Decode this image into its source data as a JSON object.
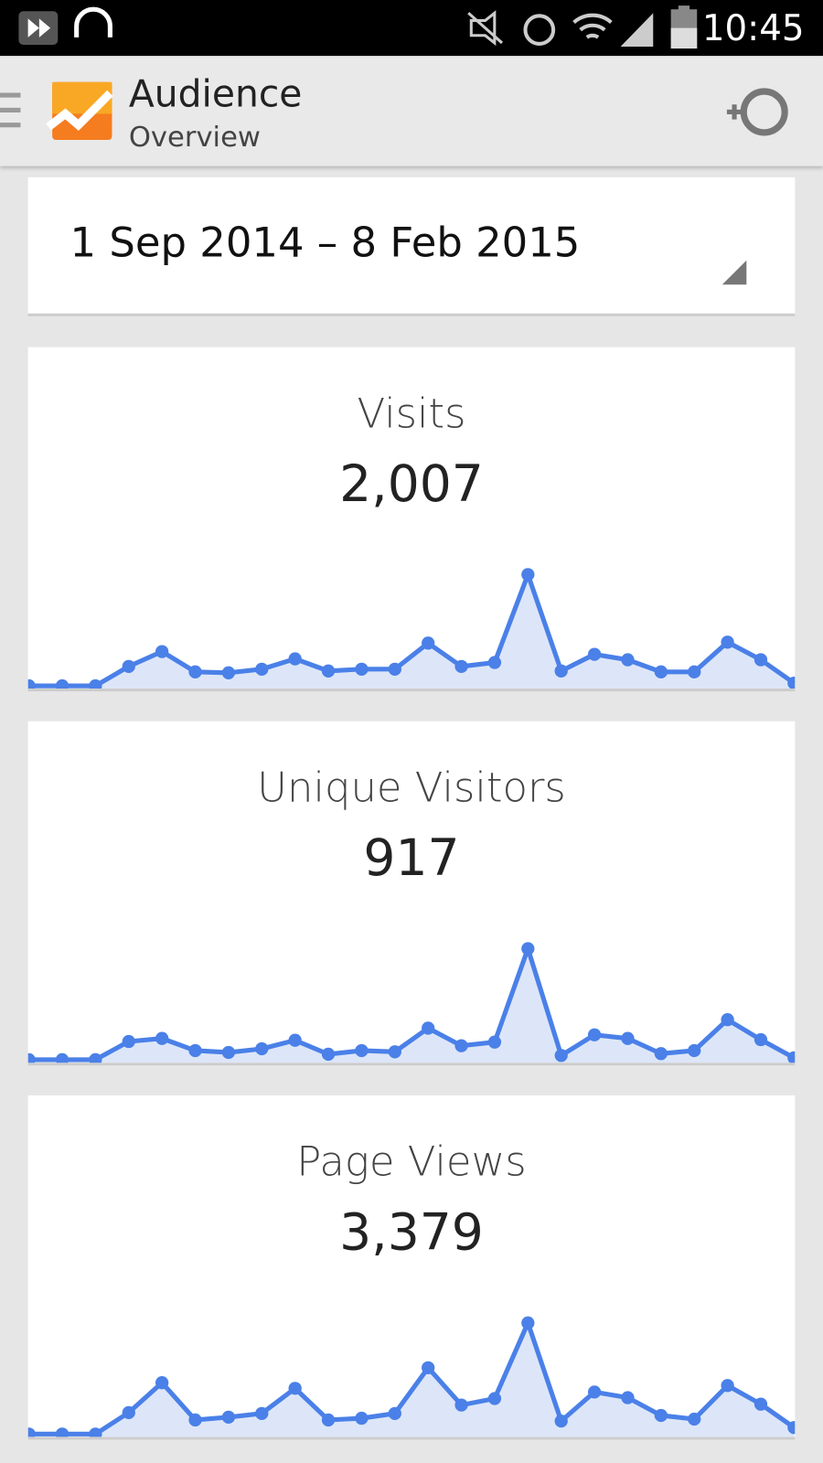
{
  "status_bar": {
    "time": "10:45"
  },
  "header": {
    "title": "Audience",
    "subtitle": "Overview"
  },
  "date_range": "1 Sep 2014 – 8 Feb 2015",
  "chart_data": [
    {
      "type": "line",
      "title": "Visits",
      "subtitle": "2,007",
      "color": "#4a80e8",
      "fill": "#dde6f8",
      "ylim": [
        0,
        400
      ],
      "values": [
        9,
        9,
        9,
        73,
        122,
        55,
        52,
        64,
        98,
        58,
        64,
        64,
        150,
        73,
        86,
        376,
        58,
        113,
        95,
        55,
        55,
        153,
        95,
        18
      ]
    },
    {
      "type": "line",
      "title": "Unique Visitors",
      "subtitle": "917",
      "color": "#4a80e8",
      "fill": "#dde6f8",
      "ylim": [
        0,
        200
      ],
      "values": [
        5,
        5,
        5,
        35,
        40,
        20,
        17,
        23,
        37,
        14,
        20,
        18,
        57,
        28,
        34,
        188,
        12,
        46,
        40,
        15,
        20,
        71,
        38,
        8
      ]
    },
    {
      "type": "line",
      "title": "Page Views",
      "subtitle": "3,379",
      "color": "#4a80e8",
      "fill": "#dde6f8",
      "ylim": [
        0,
        560
      ],
      "values": [
        13,
        13,
        13,
        112,
        250,
        78,
        91,
        108,
        224,
        78,
        86,
        108,
        319,
        147,
        177,
        526,
        73,
        207,
        181,
        99,
        82,
        237,
        151,
        43
      ]
    }
  ]
}
